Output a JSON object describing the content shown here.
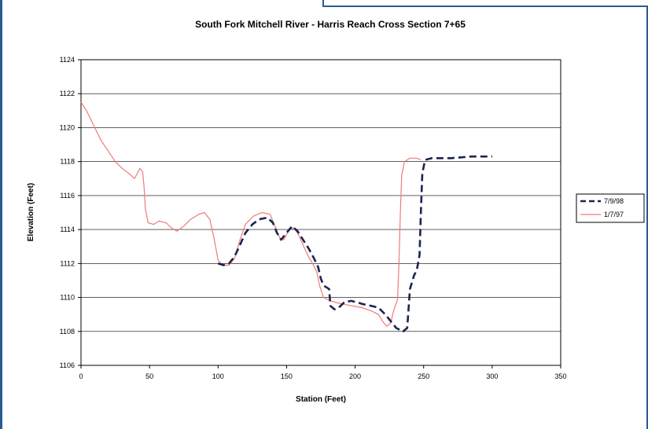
{
  "chart_data": {
    "type": "line",
    "title": "South Fork Mitchell River - Harris Reach Cross Section 7+65",
    "xlabel": "Station (Feet)",
    "ylabel": "Elevation (Feet)",
    "xlim": [
      0,
      350
    ],
    "ylim": [
      1106,
      1124
    ],
    "xticks": [
      "0",
      "50",
      "100",
      "150",
      "200",
      "250",
      "300",
      "350"
    ],
    "yticks": [
      "1106",
      "1108",
      "1110",
      "1112",
      "1114",
      "1116",
      "1118",
      "1120",
      "1122",
      "1124"
    ],
    "grid": "horizontal",
    "legend_position": "right",
    "series": [
      {
        "name": "7/9/98",
        "color": "#1c2450",
        "style": "dashed",
        "points": [
          [
            100,
            1112
          ],
          [
            104,
            1111.9
          ],
          [
            108,
            1112
          ],
          [
            112,
            1112.4
          ],
          [
            116,
            1113.1
          ],
          [
            120,
            1113.8
          ],
          [
            125,
            1114.3
          ],
          [
            130,
            1114.6
          ],
          [
            136,
            1114.7
          ],
          [
            140,
            1114.4
          ],
          [
            143,
            1113.8
          ],
          [
            146,
            1113.4
          ],
          [
            150,
            1113.8
          ],
          [
            154,
            1114.2
          ],
          [
            158,
            1113.9
          ],
          [
            162,
            1113.4
          ],
          [
            166,
            1112.9
          ],
          [
            170,
            1112.3
          ],
          [
            173,
            1111.8
          ],
          [
            175,
            1111.1
          ],
          [
            177,
            1110.7
          ],
          [
            181,
            1110.5
          ],
          [
            182,
            1109.5
          ],
          [
            185,
            1109.3
          ],
          [
            188,
            1109.4
          ],
          [
            192,
            1109.7
          ],
          [
            197,
            1109.8
          ],
          [
            202,
            1109.7
          ],
          [
            206,
            1109.6
          ],
          [
            212,
            1109.5
          ],
          [
            217,
            1109.4
          ],
          [
            222,
            1109
          ],
          [
            226,
            1108.6
          ],
          [
            230,
            1108.2
          ],
          [
            235,
            1108
          ],
          [
            238,
            1108.2
          ],
          [
            240,
            1110.5
          ],
          [
            243,
            1111.3
          ],
          [
            245,
            1111.6
          ],
          [
            247,
            1112.5
          ],
          [
            248,
            1115
          ],
          [
            249,
            1117.3
          ],
          [
            251,
            1118.1
          ],
          [
            256,
            1118.2
          ],
          [
            270,
            1118.2
          ],
          [
            285,
            1118.3
          ],
          [
            300,
            1118.3
          ]
        ]
      },
      {
        "name": "1/7/97",
        "color": "#f07a78",
        "style": "solid",
        "points": [
          [
            0,
            1121.5
          ],
          [
            4,
            1121
          ],
          [
            10,
            1120
          ],
          [
            15,
            1119.2
          ],
          [
            20,
            1118.6
          ],
          [
            25,
            1118
          ],
          [
            30,
            1117.6
          ],
          [
            35,
            1117.3
          ],
          [
            39,
            1117
          ],
          [
            41,
            1117.3
          ],
          [
            43,
            1117.6
          ],
          [
            45,
            1117.4
          ],
          [
            46,
            1116.5
          ],
          [
            47,
            1115.2
          ],
          [
            49,
            1114.4
          ],
          [
            53,
            1114.3
          ],
          [
            57,
            1114.5
          ],
          [
            62,
            1114.4
          ],
          [
            66,
            1114.1
          ],
          [
            70,
            1113.9
          ],
          [
            75,
            1114.2
          ],
          [
            80,
            1114.6
          ],
          [
            86,
            1114.9
          ],
          [
            90,
            1115
          ],
          [
            94,
            1114.6
          ],
          [
            97,
            1113.5
          ],
          [
            100,
            1112.2
          ],
          [
            103,
            1111.9
          ],
          [
            108,
            1111.9
          ],
          [
            112,
            1112.3
          ],
          [
            116,
            1113.4
          ],
          [
            120,
            1114.3
          ],
          [
            126,
            1114.8
          ],
          [
            132,
            1115
          ],
          [
            138,
            1114.9
          ],
          [
            141,
            1114.3
          ],
          [
            145,
            1113.5
          ],
          [
            148,
            1113.4
          ],
          [
            152,
            1114
          ],
          [
            155,
            1114.1
          ],
          [
            158,
            1113.8
          ],
          [
            162,
            1113.1
          ],
          [
            166,
            1112.4
          ],
          [
            169,
            1112
          ],
          [
            172,
            1111.5
          ],
          [
            174,
            1110.7
          ],
          [
            177,
            1110
          ],
          [
            182,
            1109.8
          ],
          [
            186,
            1109.7
          ],
          [
            192,
            1109.6
          ],
          [
            198,
            1109.5
          ],
          [
            205,
            1109.4
          ],
          [
            212,
            1109.2
          ],
          [
            217,
            1109
          ],
          [
            220,
            1108.6
          ],
          [
            223,
            1108.3
          ],
          [
            226,
            1108.5
          ],
          [
            228,
            1109.2
          ],
          [
            231,
            1109.9
          ],
          [
            232,
            1112
          ],
          [
            233,
            1115
          ],
          [
            234,
            1117.2
          ],
          [
            236,
            1118
          ],
          [
            240,
            1118.2
          ],
          [
            245,
            1118.2
          ],
          [
            248,
            1118.1
          ]
        ]
      }
    ]
  }
}
